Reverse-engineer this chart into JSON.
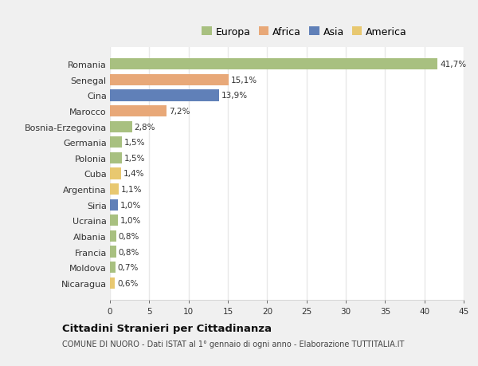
{
  "countries": [
    "Romania",
    "Senegal",
    "Cina",
    "Marocco",
    "Bosnia-Erzegovina",
    "Germania",
    "Polonia",
    "Cuba",
    "Argentina",
    "Siria",
    "Ucraina",
    "Albania",
    "Francia",
    "Moldova",
    "Nicaragua"
  ],
  "values": [
    41.7,
    15.1,
    13.9,
    7.2,
    2.8,
    1.5,
    1.5,
    1.4,
    1.1,
    1.0,
    1.0,
    0.8,
    0.8,
    0.7,
    0.6
  ],
  "labels": [
    "41,7%",
    "15,1%",
    "13,9%",
    "7,2%",
    "2,8%",
    "1,5%",
    "1,5%",
    "1,4%",
    "1,1%",
    "1,0%",
    "1,0%",
    "0,8%",
    "0,8%",
    "0,7%",
    "0,6%"
  ],
  "colors": [
    "#a8c080",
    "#e8a878",
    "#6080b8",
    "#e8a878",
    "#a8c080",
    "#a8c080",
    "#a8c080",
    "#e8c870",
    "#e8c870",
    "#6080b8",
    "#a8c080",
    "#a8c080",
    "#a8c080",
    "#a8c080",
    "#e8c870"
  ],
  "legend_labels": [
    "Europa",
    "Africa",
    "Asia",
    "America"
  ],
  "legend_colors": [
    "#a8c080",
    "#e8a878",
    "#6080b8",
    "#e8c870"
  ],
  "title": "Cittadini Stranieri per Cittadinanza",
  "subtitle": "COMUNE DI NUORO - Dati ISTAT al 1° gennaio di ogni anno - Elaborazione TUTTITALIA.IT",
  "xlim": [
    0,
    45
  ],
  "xticks": [
    0,
    5,
    10,
    15,
    20,
    25,
    30,
    35,
    40,
    45
  ],
  "background_color": "#f0f0f0",
  "plot_bg_color": "#ffffff",
  "grid_color": "#e8e8e8",
  "text_color": "#333333",
  "bar_height": 0.72
}
